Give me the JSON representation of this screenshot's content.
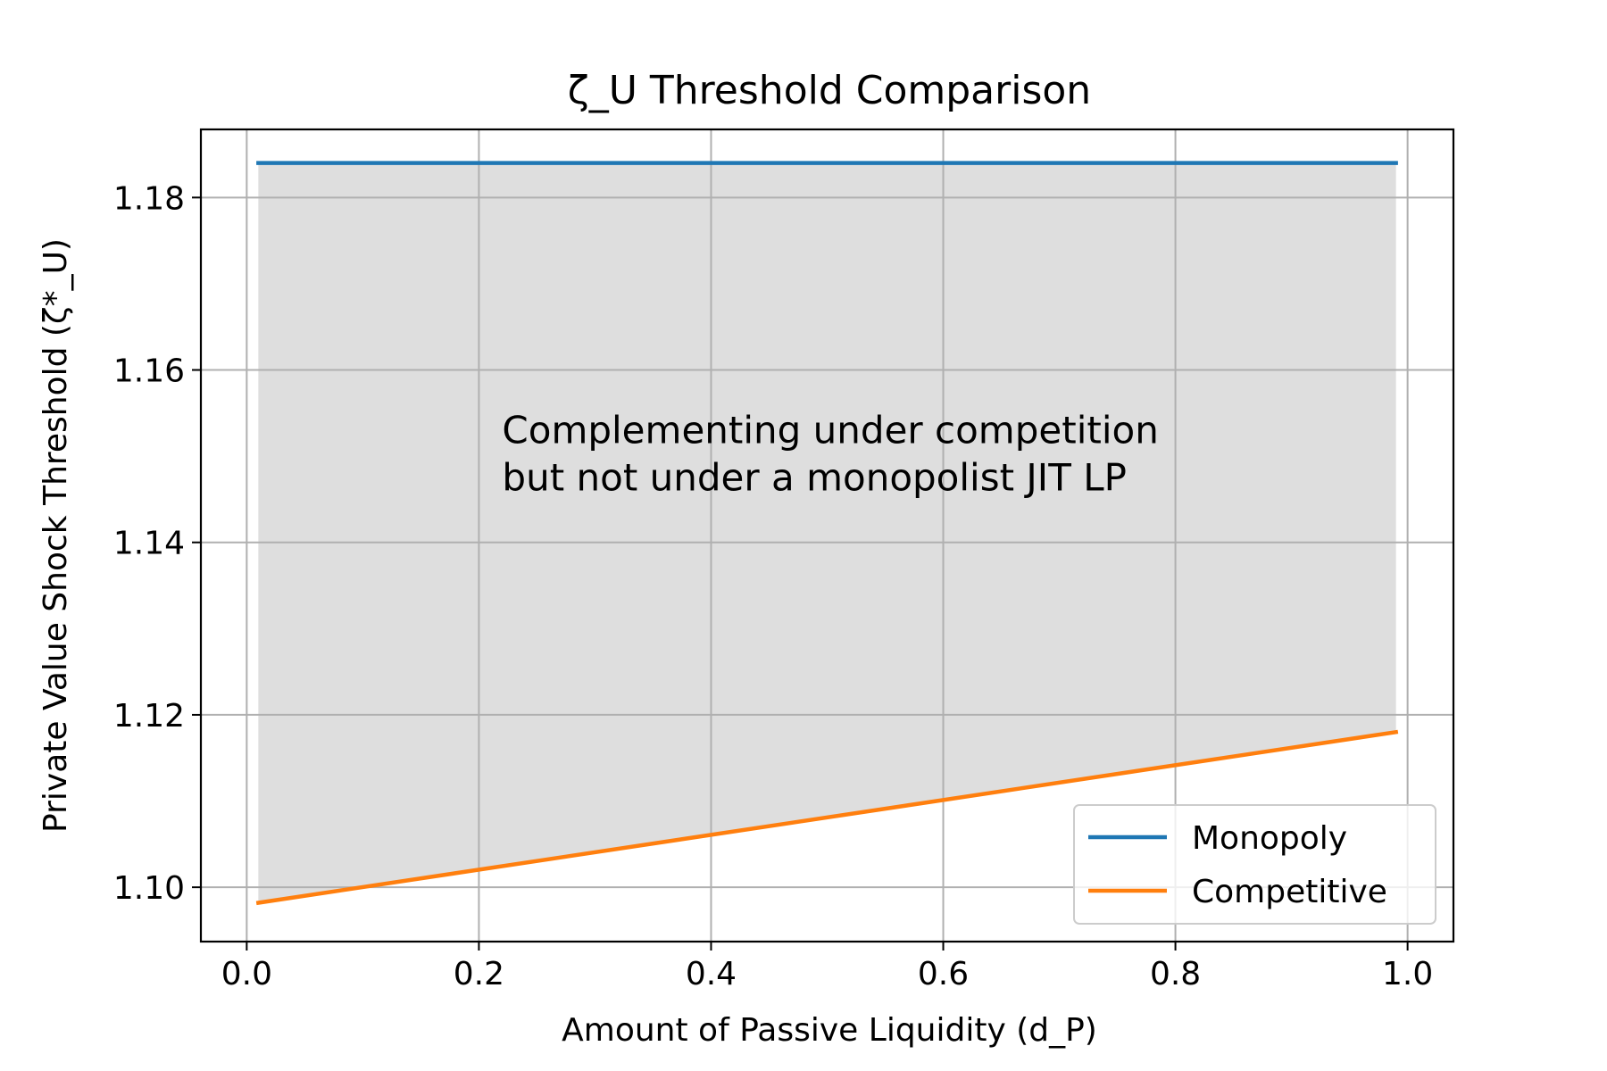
{
  "chart_data": {
    "type": "line",
    "title": "ζ_U Threshold Comparison",
    "xlabel": "Amount of Passive Liquidity (d_P)",
    "ylabel": "Private Value Shock Threshold (ζ*_U)",
    "xlim": [
      -0.0395,
      1.0395
    ],
    "ylim": [
      1.0937,
      1.1879
    ],
    "xticks": [
      0.0,
      0.2,
      0.4,
      0.6,
      0.8,
      1.0
    ],
    "xtick_labels": [
      "0.0",
      "0.2",
      "0.4",
      "0.6",
      "0.8",
      "1.0"
    ],
    "yticks": [
      1.1,
      1.12,
      1.14,
      1.16,
      1.18
    ],
    "ytick_labels": [
      "1.10",
      "1.12",
      "1.14",
      "1.16",
      "1.18"
    ],
    "grid": true,
    "legend_position": "bottom-right",
    "series": [
      {
        "name": "Monopoly",
        "color": "#1f77b4",
        "x": [
          0.01,
          0.99
        ],
        "y": [
          1.184,
          1.184
        ]
      },
      {
        "name": "Competitive",
        "color": "#ff7f0e",
        "x": [
          0.01,
          0.99
        ],
        "y": [
          1.0982,
          1.118
        ]
      }
    ],
    "fill_between": {
      "x": [
        0.01,
        0.99
      ],
      "upper": [
        1.184,
        1.184
      ],
      "lower": [
        1.0982,
        1.118
      ],
      "color": "#dedede"
    },
    "annotation": {
      "lines": [
        "Complementing under competition",
        "but not under a monopolist JIT LP"
      ],
      "x": 0.22,
      "y": 1.1515
    }
  }
}
